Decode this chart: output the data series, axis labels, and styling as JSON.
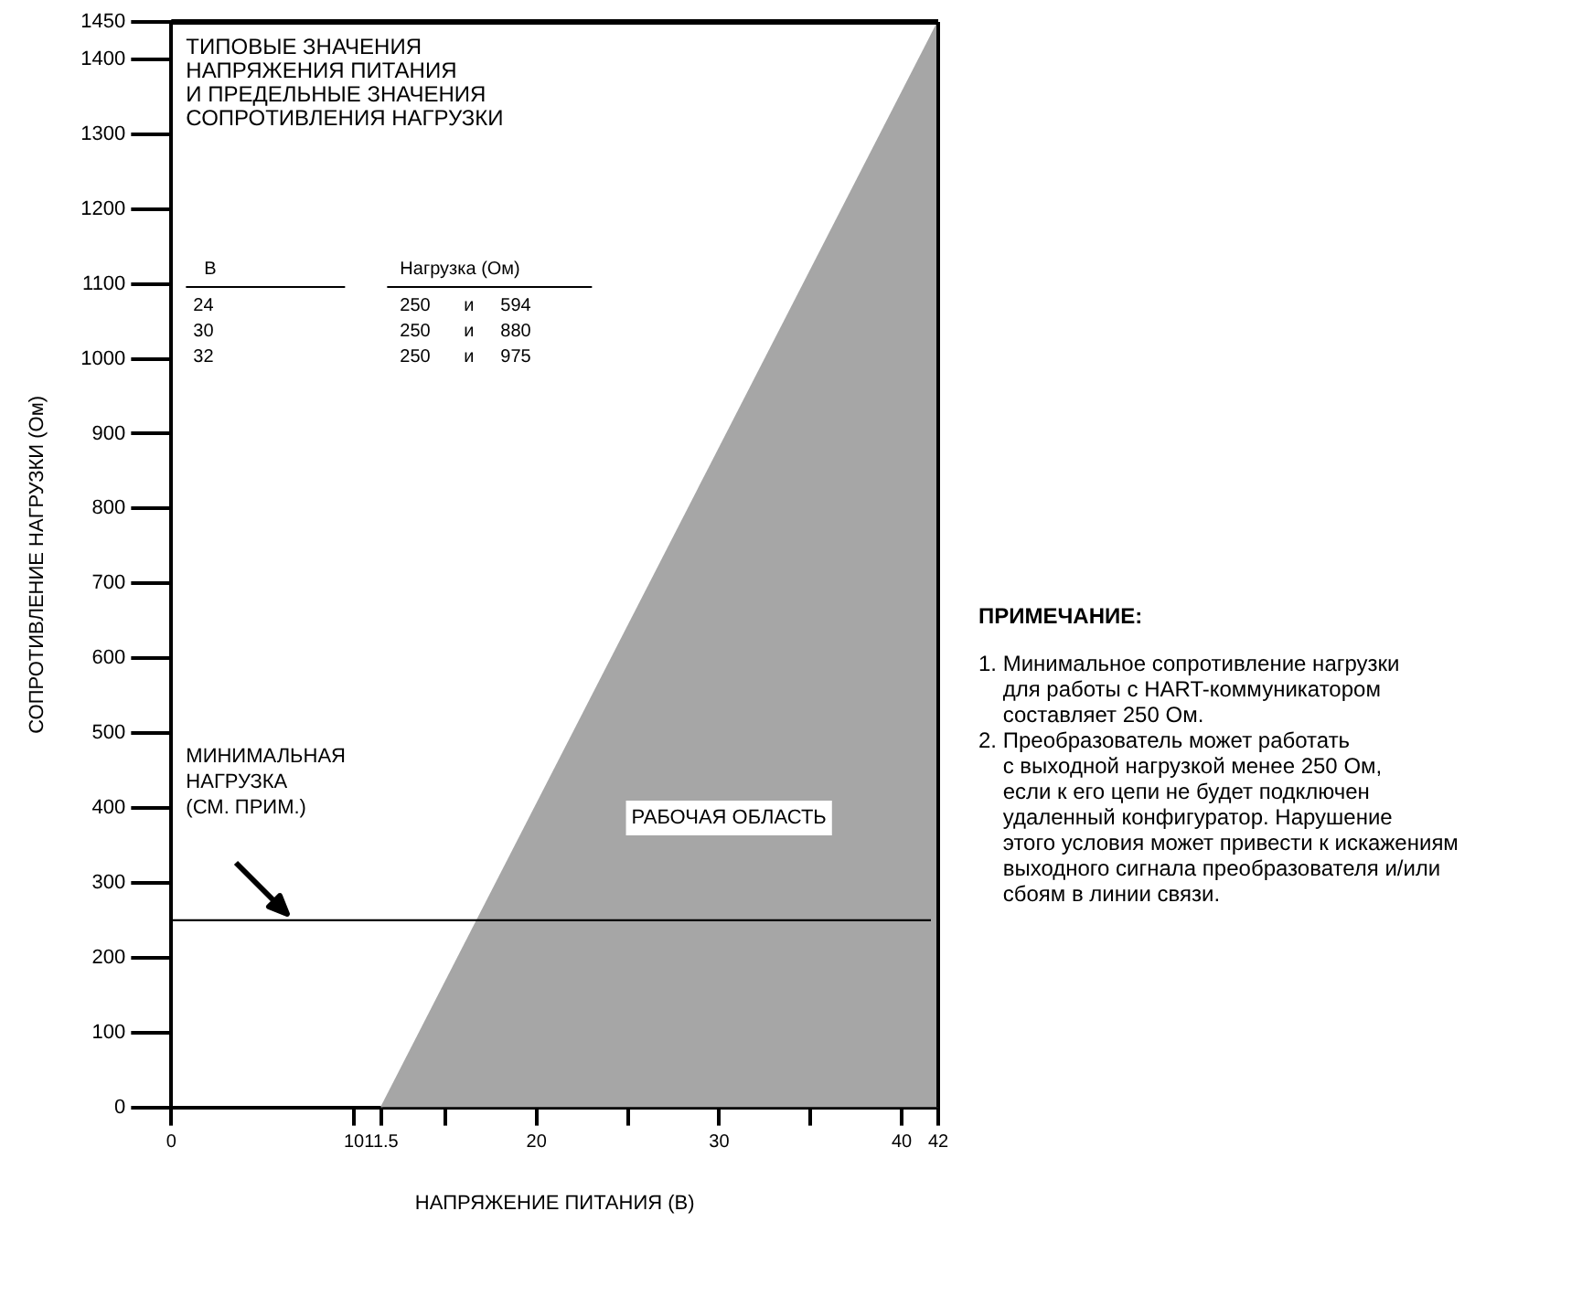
{
  "chart_data": {
    "type": "area",
    "xlabel": "НАПРЯЖЕНИЕ ПИТАНИЯ (В)",
    "ylabel": "СОПРОТИВЛЕНИЕ НАГРУЗКИ (Ом)",
    "x": [
      11.5,
      42
    ],
    "series": [
      {
        "color": "#a6a6a6",
        "values": [
          0,
          1450
        ]
      }
    ],
    "xlim": [
      0,
      42
    ],
    "ylim": [
      0,
      1450
    ],
    "xticks": [
      0,
      10,
      11.5,
      {
        "value": 15,
        "label": null
      },
      20,
      {
        "value": 25,
        "label": null
      },
      30,
      {
        "value": 35,
        "label": null
      },
      40,
      42
    ],
    "yticks": [
      0,
      100,
      200,
      300,
      400,
      500,
      600,
      700,
      800,
      900,
      1000,
      1100,
      1200,
      1300,
      1400,
      1450
    ],
    "grid": false,
    "legend": false,
    "ref_lines": [
      {
        "axis": "y",
        "value": 250,
        "label": "МИНИМАЛЬНАЯ\nНАГРУЗКА\n(СМ. ПРИМ.)",
        "color": "#000000"
      }
    ],
    "annotations": [
      "ТИПОВЫЕ ЗНАЧЕНИЯ\nНАПРЯЖЕНИЯ ПИТАНИЯ\nИ ПРЕДЕЛЬНЫЕ ЗНАЧЕНИЯ\nСОПРОТИВЛЕНИЯ НАГРУЗКИ",
      "В",
      "Нагрузка (Ом)",
      "24",
      "250",
      "и",
      "594",
      "30",
      "250",
      "и",
      "880",
      "32",
      "250",
      "и",
      "975",
      "РАБОЧАЯ ОБЛАСТЬ",
      "ПРИМЕЧАНИЕ:",
      "1. Минимальное сопротивление нагрузки\n    для работы с HART-коммуникатором\n    составляет 250 Ом.",
      "2. Преобразователь может работать\n    с выходной нагрузкой менее 250 Ом,\n    если к его цепи не будет подключен\n    удаленный конфигуратор. Нарушение\n    этого условия может привести к искажениям\n    выходного сигнала преобразователя и/или\n    сбоям в линии связи."
    ]
  }
}
